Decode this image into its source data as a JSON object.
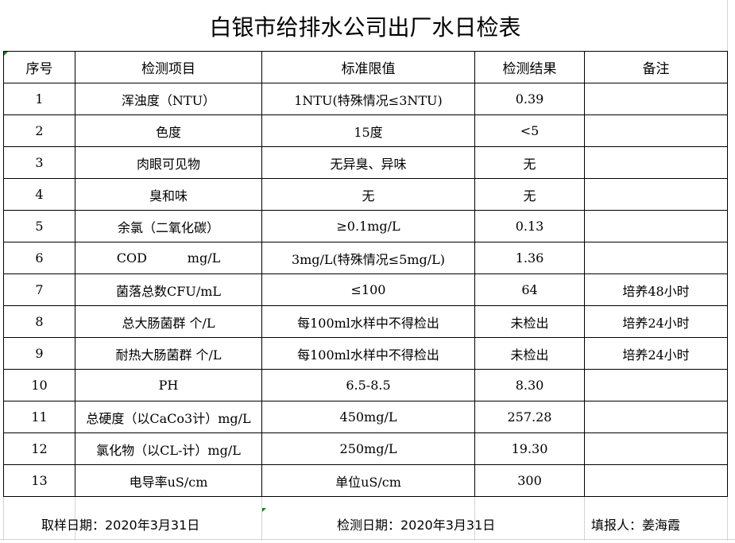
{
  "title": "白银市给排水公司出厂水日检表",
  "columns": [
    "序号",
    "检测项目",
    "标准限值",
    "检测结果",
    "备注"
  ],
  "rows": [
    [
      "1",
      "浑浊度（NTU）",
      "1NTU(特殊情况≤3NTU)",
      "0.39",
      ""
    ],
    [
      "2",
      "色度",
      "15度",
      "<5",
      ""
    ],
    [
      "3",
      "肉眼可见物",
      "无异臭、异味",
      "无",
      ""
    ],
    [
      "4",
      "臭和味",
      "无",
      "无",
      ""
    ],
    [
      "5",
      "余氯（二氧化碳）",
      "≥0.1mg/L",
      "0.13",
      ""
    ],
    [
      "6",
      "COD          mg/L",
      "3mg/L(特殊情况≤5mg/L)",
      "1.36",
      ""
    ],
    [
      "7",
      "菌落总数CFU/mL",
      "≤100",
      "64",
      "培养48小时"
    ],
    [
      "8",
      "总大肠菌群 个/L",
      "每100ml水样中不得检出",
      "未检出",
      "培养24小时"
    ],
    [
      "9",
      "耐热大肠菌群 个/L",
      "每100ml水样中不得检出",
      "未检出",
      "培养24小时"
    ],
    [
      "10",
      "PH",
      "6.5-8.5",
      "8.30",
      ""
    ],
    [
      "11",
      "总硬度（以CaCo3计）mg/L",
      "450mg/L",
      "257.28",
      ""
    ],
    [
      "12",
      "氯化物（以CL-计）mg/L",
      "250mg/L",
      "19.30",
      ""
    ],
    [
      "13",
      "电导率uS/cm",
      "单位uS/cm",
      "300",
      ""
    ]
  ],
  "footer": {
    "sample_date": "取样日期：2020年3月31日",
    "test_date": "检测日期：2020年3月31日",
    "reporter": "填报人：姜海霞"
  },
  "colors": {
    "border": "#000000",
    "gridline": "#d4d4d4",
    "cell_marker": "#1a7f1a"
  }
}
